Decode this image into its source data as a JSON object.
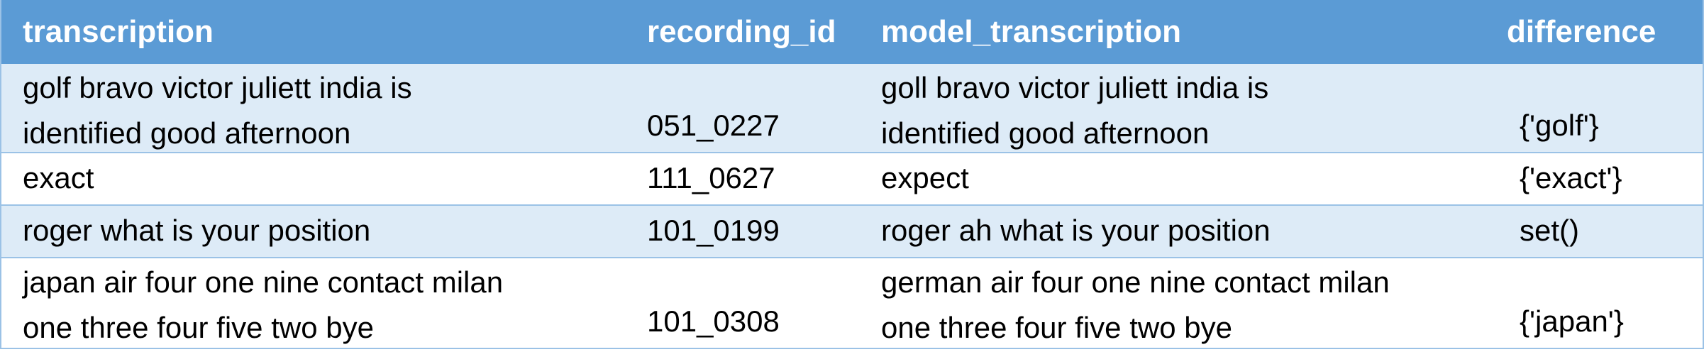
{
  "headers": {
    "transcription": "transcription",
    "recording_id": "recording_id",
    "model_transcription": "model_transcription",
    "difference": "difference"
  },
  "rows": [
    {
      "transcription_lines": [
        "golf bravo victor juliett india is",
        "identified good afternoon"
      ],
      "recording_id": "051_0227",
      "model_transcription_lines": [
        "goll bravo victor juliett india is",
        "identified good afternoon"
      ],
      "difference": "{'golf'}"
    },
    {
      "transcription_lines": [
        "exact"
      ],
      "recording_id": "111_0627",
      "model_transcription_lines": [
        "expect"
      ],
      "difference": "{'exact'}"
    },
    {
      "transcription_lines": [
        "roger what is your position"
      ],
      "recording_id": "101_0199",
      "model_transcription_lines": [
        "roger ah what is your position"
      ],
      "difference": "set()"
    },
    {
      "transcription_lines": [
        "japan air four one nine contact milan",
        "one three four five two bye"
      ],
      "recording_id": "101_0308",
      "model_transcription_lines": [
        "german air four one nine contact milan",
        "one three four five two bye"
      ],
      "difference": "{'japan'}"
    }
  ],
  "colors": {
    "header_bg": "#5b9bd5",
    "header_text": "#ffffff",
    "band_bg": "#ddebf7",
    "border": "#9bc2e6"
  }
}
